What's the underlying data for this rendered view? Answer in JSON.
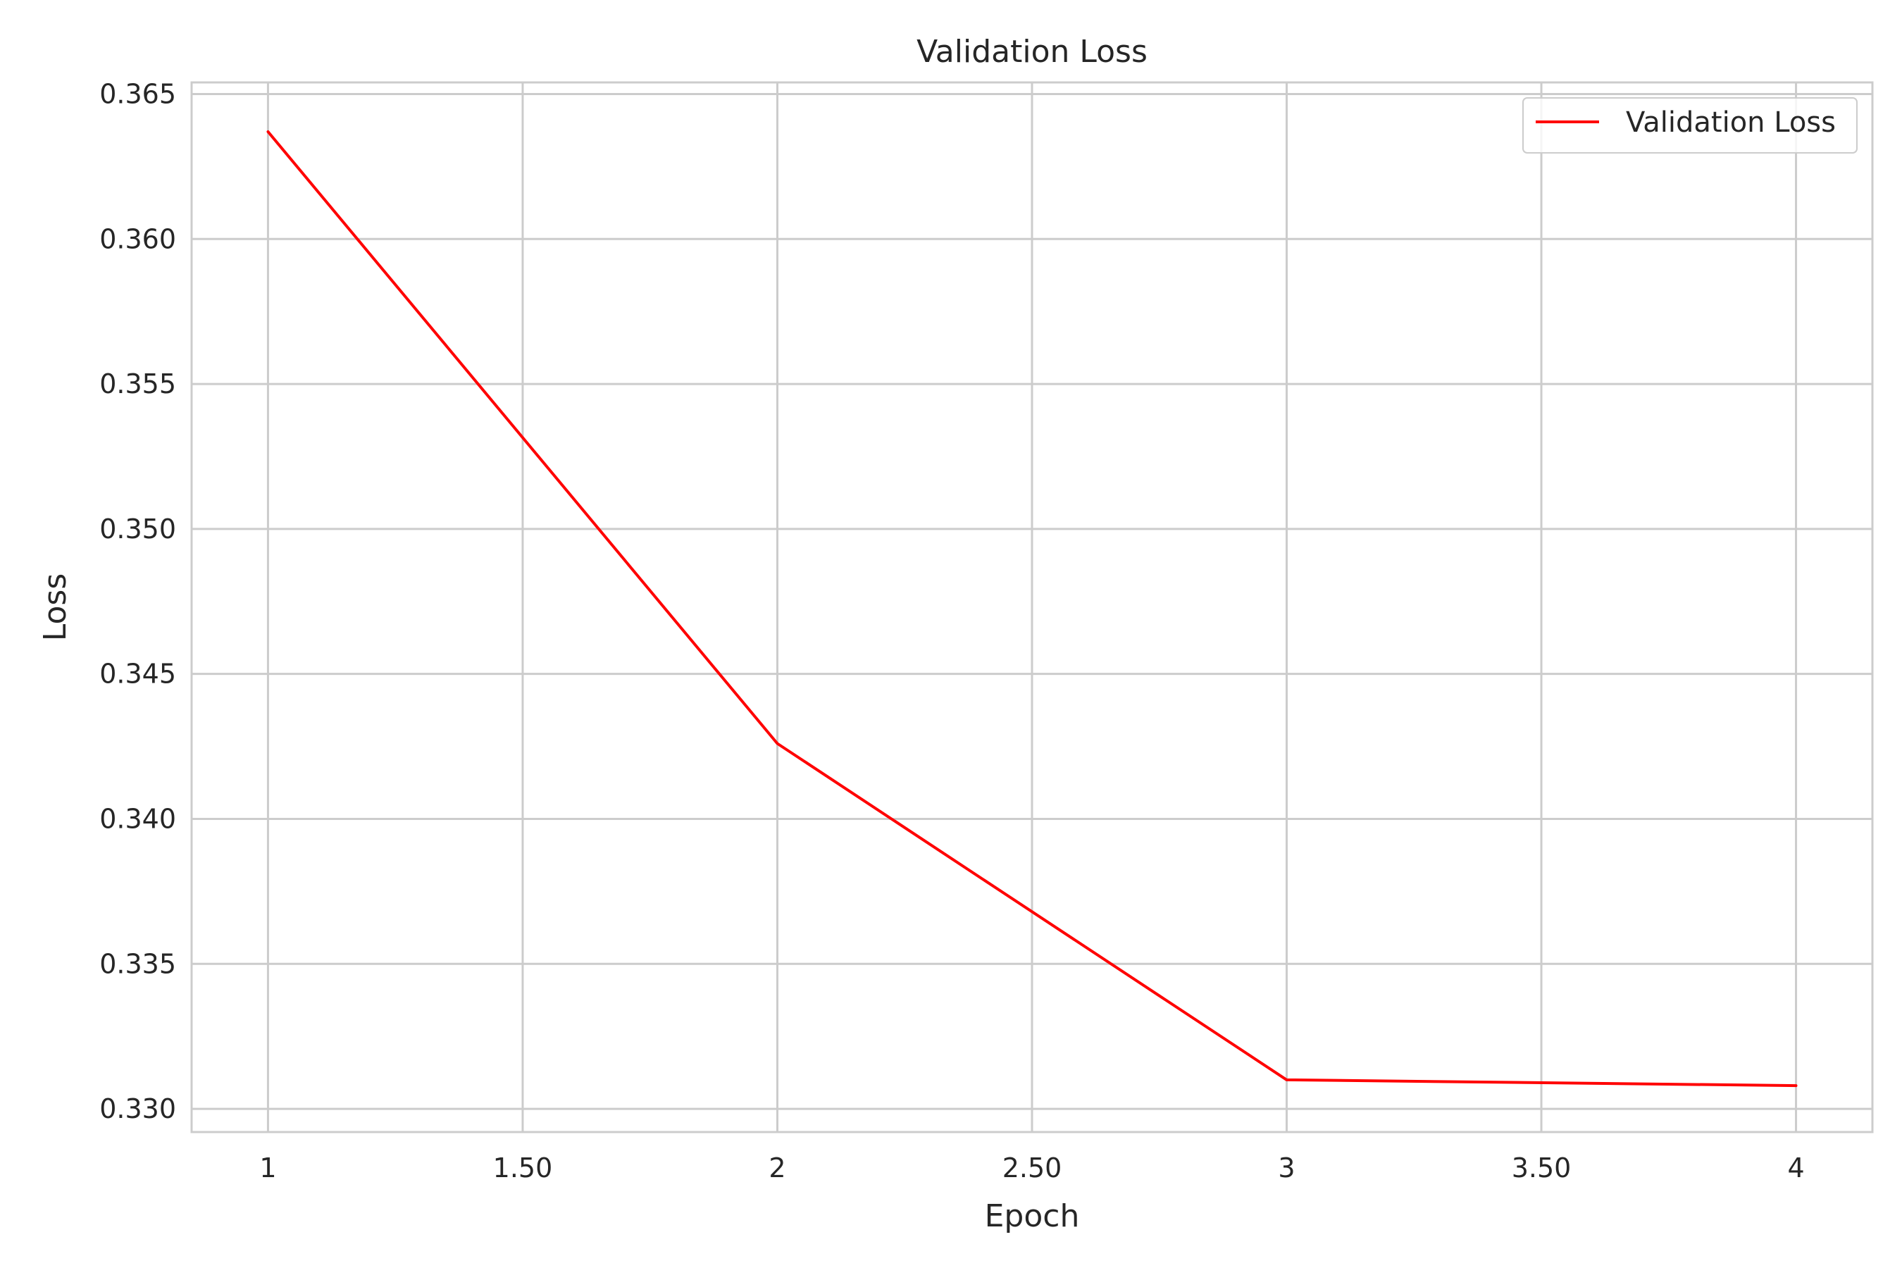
{
  "chart_data": {
    "type": "line",
    "title": "Validation Loss",
    "xlabel": "Epoch",
    "ylabel": "Loss",
    "xlim": [
      0.85,
      4.15
    ],
    "ylim": [
      0.3292,
      0.3654
    ],
    "xticks": [
      1,
      1.5,
      2,
      2.5,
      3,
      3.5,
      4
    ],
    "xtick_labels": [
      "1",
      "1.50",
      "2",
      "2.50",
      "3",
      "3.50",
      "4"
    ],
    "yticks": [
      0.33,
      0.335,
      0.34,
      0.345,
      0.35,
      0.355,
      0.36,
      0.365
    ],
    "ytick_labels": [
      "0.330",
      "0.335",
      "0.340",
      "0.345",
      "0.350",
      "0.355",
      "0.360",
      "0.365"
    ],
    "grid": true,
    "legend_position": "top-right",
    "series": [
      {
        "name": "Validation Loss",
        "color": "#ff0000",
        "x": [
          1,
          2,
          3,
          4
        ],
        "y": [
          0.3637,
          0.3426,
          0.331,
          0.3308
        ]
      }
    ]
  }
}
